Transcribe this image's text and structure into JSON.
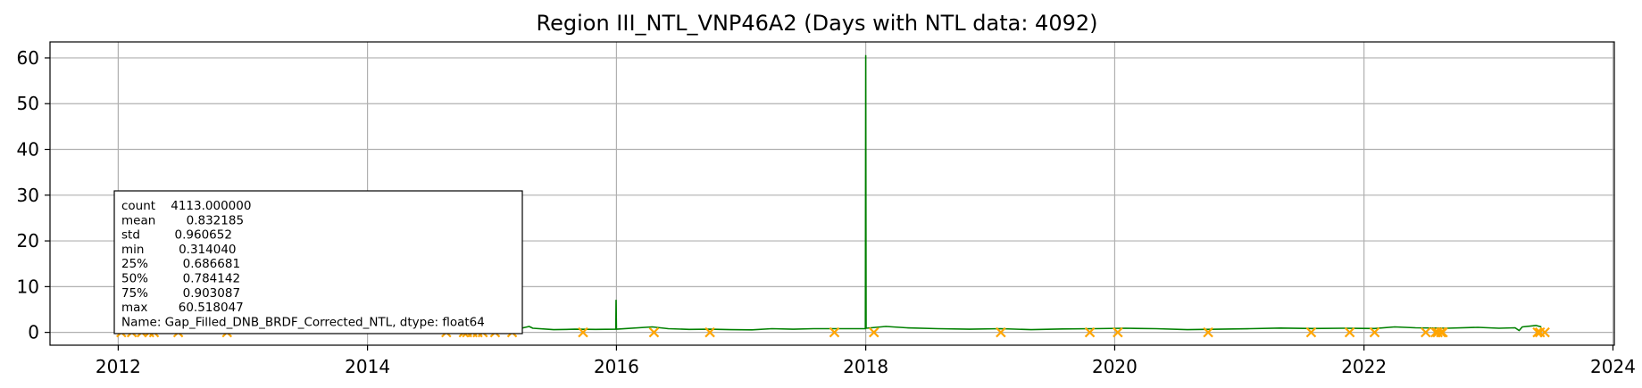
{
  "chart_data": {
    "type": "line",
    "title": "Region III_NTL_VNP46A2 (Days with NTL data: 4092)",
    "xlabel": "",
    "ylabel": "",
    "x_axis": "date",
    "xlim": [
      "2011-06-15",
      "2024-01-05"
    ],
    "ylim": [
      -2.8,
      63.5
    ],
    "xticks": [
      "2012",
      "2014",
      "2016",
      "2018",
      "2020",
      "2022",
      "2024"
    ],
    "yticks": [
      0,
      10,
      20,
      30,
      40,
      50,
      60
    ],
    "grid": true,
    "series": [
      {
        "kind": "line",
        "color": "#008000",
        "points": [
          [
            "2012-01-20",
            0.65
          ],
          [
            "2012-03-01",
            0.75
          ],
          [
            "2012-04-10",
            0.7
          ],
          [
            "2012-05-15",
            6.5
          ],
          [
            "2012-05-18",
            0.8
          ],
          [
            "2012-07-01",
            0.7
          ],
          [
            "2012-10-01",
            0.8
          ],
          [
            "2013-01-01",
            0.75
          ],
          [
            "2013-06-01",
            0.8
          ],
          [
            "2014-01-01",
            0.7
          ],
          [
            "2014-06-01",
            0.8
          ],
          [
            "2014-10-01",
            0.75
          ],
          [
            "2015-01-01",
            0.8
          ],
          [
            "2015-03-15",
            0.7
          ],
          [
            "2015-04-20",
            1.3
          ],
          [
            "2015-05-01",
            0.9
          ],
          [
            "2015-07-01",
            0.6
          ],
          [
            "2015-09-01",
            0.7
          ],
          [
            "2015-11-01",
            0.65
          ],
          [
            "2015-12-30",
            0.7
          ],
          [
            "2015-12-31",
            7.0
          ],
          [
            "2016-01-01",
            0.7
          ],
          [
            "2016-04-15",
            1.2
          ],
          [
            "2016-06-01",
            0.8
          ],
          [
            "2016-08-01",
            0.65
          ],
          [
            "2016-10-01",
            0.7
          ],
          [
            "2016-12-01",
            0.6
          ],
          [
            "2017-02-01",
            0.55
          ],
          [
            "2017-04-01",
            0.8
          ],
          [
            "2017-06-01",
            0.7
          ],
          [
            "2017-08-01",
            0.8
          ],
          [
            "2017-10-01",
            0.8
          ],
          [
            "2017-12-31",
            0.8
          ],
          [
            "2018-01-01",
            60.5
          ],
          [
            "2018-01-02",
            0.9
          ],
          [
            "2018-03-01",
            1.3
          ],
          [
            "2018-05-01",
            1.0
          ],
          [
            "2018-08-01",
            0.8
          ],
          [
            "2018-11-01",
            0.7
          ],
          [
            "2019-02-01",
            0.8
          ],
          [
            "2019-05-01",
            0.6
          ],
          [
            "2019-08-01",
            0.75
          ],
          [
            "2019-11-01",
            0.8
          ],
          [
            "2020-02-01",
            0.9
          ],
          [
            "2020-05-01",
            0.8
          ],
          [
            "2020-08-01",
            0.6
          ],
          [
            "2020-11-01",
            0.7
          ],
          [
            "2021-02-01",
            0.8
          ],
          [
            "2021-05-01",
            0.95
          ],
          [
            "2021-08-01",
            0.85
          ],
          [
            "2021-11-01",
            0.9
          ],
          [
            "2022-02-01",
            0.85
          ],
          [
            "2022-04-01",
            1.2
          ],
          [
            "2022-06-01",
            1.0
          ],
          [
            "2022-09-01",
            0.9
          ],
          [
            "2022-12-01",
            1.1
          ],
          [
            "2023-02-01",
            0.9
          ],
          [
            "2023-03-20",
            1.0
          ],
          [
            "2023-04-01",
            0.4
          ],
          [
            "2023-04-10",
            1.2
          ],
          [
            "2023-05-20",
            1.5
          ],
          [
            "2023-06-05",
            1.2
          ]
        ]
      },
      {
        "kind": "markers",
        "marker": "x",
        "color": "#FFA500",
        "y": 0,
        "x": [
          "2012-01-10",
          "2012-02-10",
          "2012-03-10",
          "2012-04-01",
          "2012-04-15",
          "2012-06-25",
          "2012-11-15",
          "2014-08-20",
          "2014-10-10",
          "2014-10-20",
          "2014-11-05",
          "2014-11-20",
          "2014-12-05",
          "2015-01-10",
          "2015-03-01",
          "2015-09-25",
          "2016-04-20",
          "2016-10-01",
          "2017-10-01",
          "2018-01-25",
          "2019-02-01",
          "2019-10-20",
          "2020-01-10",
          "2020-10-01",
          "2021-07-30",
          "2021-11-20",
          "2022-02-01",
          "2022-07-01",
          "2022-07-30",
          "2022-08-05",
          "2022-08-15",
          "2022-08-20",
          "2023-05-25",
          "2023-06-01",
          "2023-06-15"
        ]
      }
    ],
    "stats_box": {
      "lines": [
        "count    4113.000000",
        "mean        0.832185",
        "std         0.960652",
        "min         0.314040",
        "25%         0.686681",
        "50%         0.784142",
        "75%         0.903087",
        "max        60.518047",
        "Name: Gap_Filled_DNB_BRDF_Corrected_NTL, dtype: float64"
      ]
    }
  }
}
